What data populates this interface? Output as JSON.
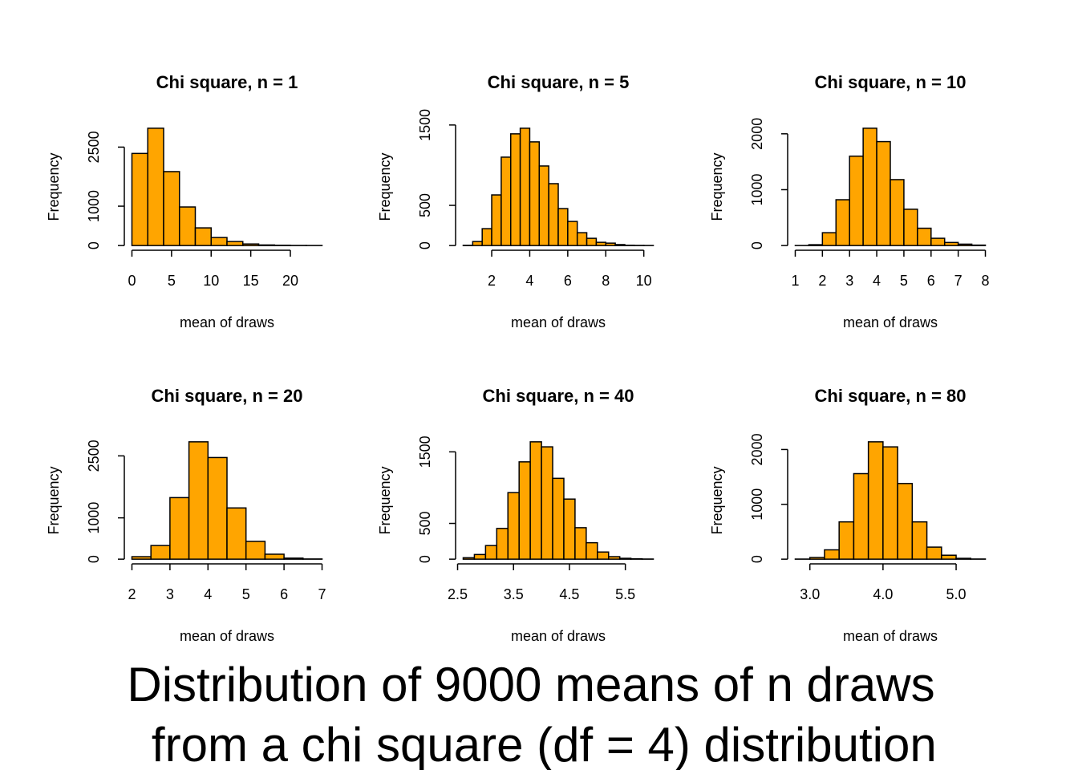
{
  "title": [
    "Distribution of 9000 means of n draws",
    " from a chi square (df = 4) distribution"
  ],
  "chart_data": [
    {
      "type": "histogram",
      "title": "Chi square, n = 1",
      "xlabel": "mean of draws",
      "ylabel": "Frequency",
      "color": "#ffa500",
      "bins": [
        0,
        2,
        4,
        6,
        8,
        10,
        12,
        14,
        16,
        18,
        20,
        22,
        24
      ],
      "values": [
        2339,
        2980,
        1878,
        980,
        449,
        204,
        102,
        40,
        15,
        8,
        3,
        2
      ],
      "xlim": [
        -0.96,
        24.96
      ],
      "xticks": [
        0,
        5,
        10,
        15,
        20
      ],
      "ylim": [
        -119.2,
        3099.2
      ],
      "yticks": [
        0,
        1000,
        2500
      ]
    },
    {
      "type": "histogram",
      "title": "Chi square, n = 5",
      "xlabel": "mean of draws",
      "ylabel": "Frequency",
      "color": "#ffa500",
      "bins": [
        0.5,
        1,
        1.5,
        2,
        2.5,
        3,
        3.5,
        4,
        4.5,
        5,
        5.5,
        6,
        6.5,
        7,
        7.5,
        8,
        8.5,
        9,
        9.5,
        10,
        10.5
      ],
      "values": [
        3,
        50,
        210,
        630,
        1100,
        1390,
        1460,
        1290,
        990,
        770,
        460,
        300,
        160,
        90,
        40,
        30,
        12,
        4,
        2,
        1
      ],
      "xlim": [
        0.1,
        10.9
      ],
      "xticks": [
        2,
        4,
        6,
        8,
        10
      ],
      "ylim": [
        -58.4,
        1518.4
      ],
      "yticks": [
        0,
        500,
        1500
      ]
    },
    {
      "type": "histogram",
      "title": "Chi square, n = 10",
      "xlabel": "mean of draws",
      "ylabel": "Frequency",
      "color": "#ffa500",
      "bins": [
        1,
        1.5,
        2,
        2.5,
        3,
        3.5,
        4,
        4.5,
        5,
        5.5,
        6,
        6.5,
        7,
        7.5,
        8
      ],
      "values": [
        1,
        15,
        230,
        820,
        1600,
        2100,
        1860,
        1180,
        650,
        310,
        130,
        55,
        25,
        8
      ],
      "xlim": [
        0.72,
        8.28
      ],
      "xticks": [
        1,
        2,
        3,
        4,
        5,
        6,
        7,
        8
      ],
      "ylim": [
        -84,
        2184
      ],
      "yticks": [
        0,
        1000,
        2000
      ]
    },
    {
      "type": "histogram",
      "title": "Chi square, n = 20",
      "xlabel": "mean of draws",
      "ylabel": "Frequency",
      "color": "#ffa500",
      "bins": [
        2,
        2.5,
        3,
        3.5,
        4,
        4.5,
        5,
        5.5,
        6,
        6.5,
        7
      ],
      "values": [
        60,
        330,
        1490,
        2840,
        2460,
        1240,
        430,
        120,
        25,
        5
      ],
      "xlim": [
        1.8,
        7.2
      ],
      "xticks": [
        2,
        3,
        4,
        5,
        6,
        7
      ],
      "ylim": [
        -113.6,
        2953.6
      ],
      "yticks": [
        0,
        1000,
        2500
      ]
    },
    {
      "type": "histogram",
      "title": "Chi square, n = 40",
      "xlabel": "mean of draws",
      "ylabel": "Frequency",
      "color": "#ffa500",
      "bins": [
        2.6,
        2.8,
        3.0,
        3.2,
        3.4,
        3.6,
        3.8,
        4.0,
        4.2,
        4.4,
        4.6,
        4.8,
        5.0,
        5.2,
        5.4,
        5.6,
        5.8,
        6.0
      ],
      "values": [
        20,
        65,
        190,
        430,
        930,
        1360,
        1640,
        1570,
        1130,
        840,
        440,
        230,
        100,
        35,
        12,
        5,
        2
      ],
      "xlim": [
        2.464,
        6.136
      ],
      "xticks": [
        2.5,
        3.5,
        4.5,
        5.5
      ],
      "ylim": [
        -65.6,
        1705.6
      ],
      "yticks": [
        0,
        500,
        1500
      ]
    },
    {
      "type": "histogram",
      "title": "Chi square, n = 80",
      "xlabel": "mean of draws",
      "ylabel": "Frequency",
      "color": "#ffa500",
      "bins": [
        2.8,
        3.0,
        3.2,
        3.4,
        3.6,
        3.8,
        4.0,
        4.2,
        4.4,
        4.6,
        4.8,
        5.0,
        5.2,
        5.4
      ],
      "values": [
        2,
        30,
        170,
        680,
        1560,
        2140,
        2048,
        1380,
        680,
        220,
        72,
        15,
        3
      ],
      "xlim": [
        2.696,
        5.504
      ],
      "xticks": [
        {
          "value": 3,
          "label": "3.0"
        },
        {
          "value": 4,
          "label": "4.0"
        },
        {
          "value": 5,
          "label": "5.0"
        }
      ],
      "ylim": [
        -85.6,
        2225.6
      ],
      "yticks": [
        0,
        1000,
        2000
      ]
    }
  ]
}
